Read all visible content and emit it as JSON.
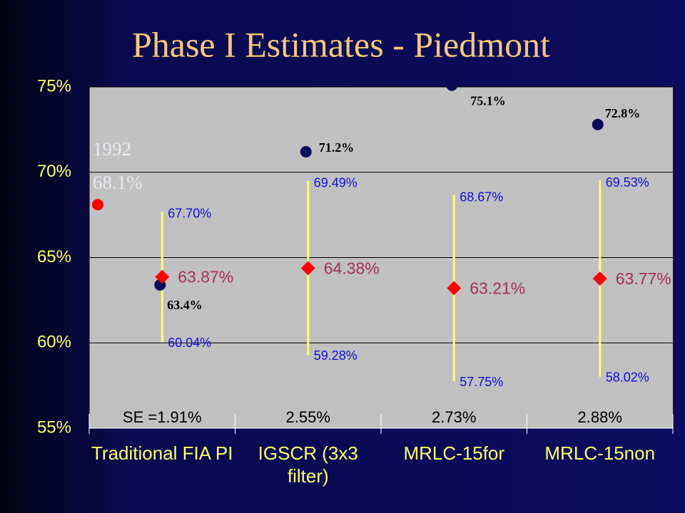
{
  "chart_data": {
    "type": "interval",
    "title": "Phase I Estimates - Piedmont",
    "categories": [
      "Traditional FIA PI",
      "IGSCR (3x3 filter)",
      "MRLC-15for",
      "MRLC-15non"
    ],
    "ylim": [
      55,
      75
    ],
    "yticks": [
      {
        "value": 55,
        "label": "55%"
      },
      {
        "value": 60,
        "label": "60%"
      },
      {
        "value": 65,
        "label": "65%"
      },
      {
        "value": 70,
        "label": "70%"
      },
      {
        "value": 75,
        "label": "75%"
      }
    ],
    "grid": true,
    "estimates": {
      "color": "#ff0000",
      "label_color": "#a8305a",
      "values": [
        63.87,
        64.38,
        63.21,
        63.77
      ],
      "value_labels": [
        "63.87%",
        "64.38%",
        "63.21%",
        "63.77%"
      ]
    },
    "upper": {
      "color": "#1010e0",
      "values": [
        67.7,
        69.49,
        68.67,
        69.53
      ],
      "value_labels": [
        "67.70%",
        "69.49%",
        "68.67%",
        "69.53%"
      ]
    },
    "lower": {
      "color": "#1010e0",
      "values": [
        60.04,
        59.28,
        57.75,
        58.02
      ],
      "value_labels": [
        "60.04%",
        "59.28%",
        "57.75%",
        "58.02%"
      ]
    },
    "interval_color": "#ffff66",
    "observed": {
      "color": "#0a0a5a",
      "values": [
        63.4,
        71.2,
        75.1,
        72.8
      ],
      "value_labels": [
        "63.4%",
        "71.2%",
        "75.1%",
        "72.8%"
      ]
    },
    "reference": {
      "label": "1992",
      "value": 68.1,
      "value_label": "68.1%",
      "color": "#ff0000"
    },
    "se_labels": [
      "SE =1.91%",
      "2.55%",
      "2.73%",
      "2.88%"
    ]
  }
}
